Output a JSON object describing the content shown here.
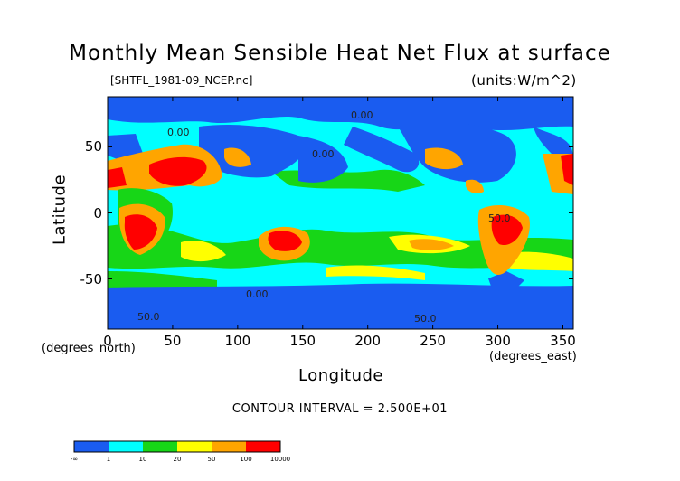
{
  "chart_data": {
    "type": "heatmap",
    "title": "Monthly Mean Sensible Heat Net Flux at surface",
    "subtitle": "[SHTFL_1981-09_NCEP.nc]",
    "units_label": "(units:W/m^2)",
    "xlabel": "Longitude",
    "ylabel": "Latitude",
    "x_unit_label": "(degrees_east)",
    "y_unit_label": "(degrees_north)",
    "xlim": [
      0,
      358
    ],
    "ylim": [
      -88,
      88
    ],
    "x_ticks": [
      "0",
      "50",
      "100",
      "150",
      "200",
      "250",
      "300",
      "350"
    ],
    "x_tick_values": [
      0,
      50,
      100,
      150,
      200,
      250,
      300,
      350
    ],
    "y_ticks": [
      "50",
      "0",
      "-50"
    ],
    "y_tick_values": [
      50,
      0,
      -50
    ],
    "contour_interval_text": "CONTOUR INTERVAL = 2.500E+01",
    "contour_labels": [
      "0.00",
      "0.00",
      "0.00",
      "50.0",
      "50.0",
      "50.0",
      "0.00"
    ],
    "legend": {
      "colors": [
        "#1a5cf0",
        "#00ffff",
        "#17d617",
        "#ffff00",
        "#ffa500",
        "#ff0000"
      ],
      "boundaries": [
        "-∞",
        "1",
        "10",
        "20",
        "50",
        "100",
        "10000"
      ]
    },
    "regions": [
      {
        "name": "ocean-background",
        "level": 2,
        "color": "#00ffff"
      },
      {
        "name": "arctic",
        "level": 0,
        "color": "#1a5cf0"
      },
      {
        "name": "antarctica",
        "level": 0,
        "color": "#1a5cf0"
      },
      {
        "name": "southern-ocean",
        "level": 0,
        "color": "#1a5cf0"
      },
      {
        "name": "north-pacific",
        "level": 0,
        "color": "#1a5cf0"
      },
      {
        "name": "north-atlantic",
        "level": 0,
        "color": "#1a5cf0"
      },
      {
        "name": "asia",
        "level": 0,
        "color": "#1a5cf0"
      },
      {
        "name": "north-america",
        "level": 0,
        "color": "#1a5cf0"
      },
      {
        "name": "sahara-arabia",
        "level": 5,
        "color": "#ff0000"
      },
      {
        "name": "southern-africa",
        "level": 5,
        "color": "#ff0000"
      },
      {
        "name": "australia-interior",
        "level": 5,
        "color": "#ff0000"
      },
      {
        "name": "brazil",
        "level": 5,
        "color": "#ff0000"
      },
      {
        "name": "southwest-usa",
        "level": 5,
        "color": "#ff0000"
      }
    ]
  }
}
